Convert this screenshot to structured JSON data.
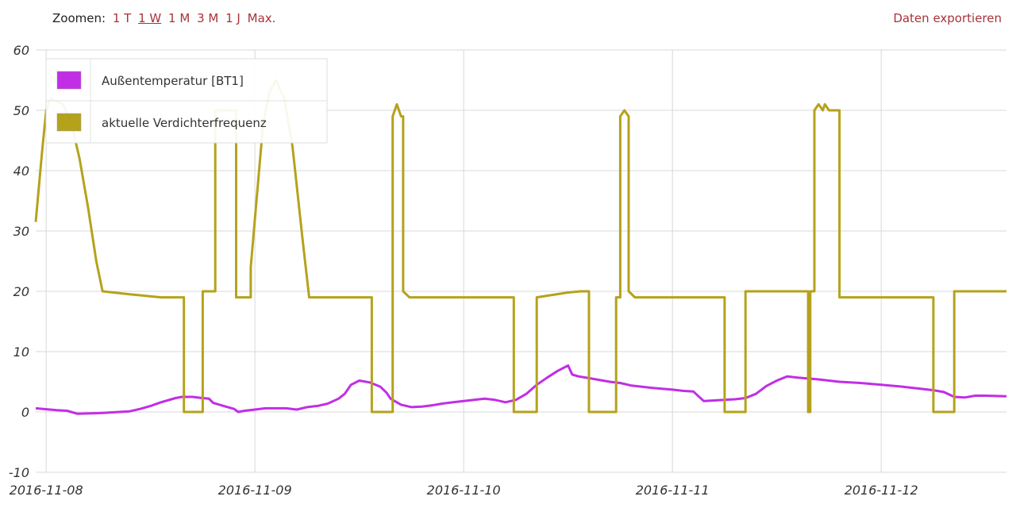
{
  "toolbar": {
    "zoom_label": "Zoomen:",
    "zoom_options": [
      "1 T",
      "1 W",
      "1 M",
      "3 M",
      "1 J",
      "Max."
    ],
    "active_zoom": "1 W",
    "export_label": "Daten exportieren"
  },
  "chart_data": {
    "type": "line",
    "title": "",
    "xlabel": "",
    "ylabel": "",
    "ylim": [
      -10,
      60
    ],
    "yticks": [
      -10,
      0,
      10,
      20,
      30,
      40,
      50,
      60
    ],
    "xticks": [
      "2016-11-08",
      "2016-11-09",
      "2016-11-10",
      "2016-11-11",
      "2016-11-12"
    ],
    "x_unit": "days after 2016-11-08 00:00",
    "xlim": [
      -0.05,
      4.6
    ],
    "grid": true,
    "legend_position": "top-left",
    "series": [
      {
        "name": "Außentemperatur [BT1]",
        "color": "#c12ee6",
        "points": [
          [
            -0.05,
            0.6
          ],
          [
            0.05,
            0.3
          ],
          [
            0.1,
            0.2
          ],
          [
            0.15,
            -0.3
          ],
          [
            0.25,
            -0.2
          ],
          [
            0.35,
            0.0
          ],
          [
            0.4,
            0.1
          ],
          [
            0.45,
            0.5
          ],
          [
            0.5,
            1.0
          ],
          [
            0.55,
            1.6
          ],
          [
            0.6,
            2.1
          ],
          [
            0.62,
            2.3
          ],
          [
            0.65,
            2.5
          ],
          [
            0.7,
            2.5
          ],
          [
            0.75,
            2.3
          ],
          [
            0.78,
            2.2
          ],
          [
            0.8,
            1.5
          ],
          [
            0.85,
            1.0
          ],
          [
            0.9,
            0.5
          ],
          [
            0.92,
            0.0
          ],
          [
            0.95,
            0.2
          ],
          [
            1.0,
            0.4
          ],
          [
            1.05,
            0.6
          ],
          [
            1.1,
            0.6
          ],
          [
            1.15,
            0.6
          ],
          [
            1.2,
            0.4
          ],
          [
            1.25,
            0.8
          ],
          [
            1.3,
            1.0
          ],
          [
            1.35,
            1.4
          ],
          [
            1.4,
            2.2
          ],
          [
            1.43,
            3.0
          ],
          [
            1.46,
            4.5
          ],
          [
            1.5,
            5.2
          ],
          [
            1.55,
            4.9
          ],
          [
            1.6,
            4.2
          ],
          [
            1.63,
            3.2
          ],
          [
            1.65,
            2.2
          ],
          [
            1.7,
            1.2
          ],
          [
            1.75,
            0.8
          ],
          [
            1.8,
            0.9
          ],
          [
            1.85,
            1.1
          ],
          [
            1.9,
            1.4
          ],
          [
            1.95,
            1.6
          ],
          [
            2.0,
            1.8
          ],
          [
            2.1,
            2.2
          ],
          [
            2.15,
            2.0
          ],
          [
            2.2,
            1.6
          ],
          [
            2.25,
            2.0
          ],
          [
            2.3,
            3.0
          ],
          [
            2.35,
            4.5
          ],
          [
            2.4,
            5.7
          ],
          [
            2.45,
            6.8
          ],
          [
            2.5,
            7.7
          ],
          [
            2.52,
            6.2
          ],
          [
            2.55,
            5.9
          ],
          [
            2.6,
            5.6
          ],
          [
            2.7,
            5.0
          ],
          [
            2.75,
            4.8
          ],
          [
            2.8,
            4.4
          ],
          [
            2.9,
            4.0
          ],
          [
            3.0,
            3.7
          ],
          [
            3.05,
            3.5
          ],
          [
            3.1,
            3.4
          ],
          [
            3.15,
            1.8
          ],
          [
            3.25,
            2.0
          ],
          [
            3.3,
            2.1
          ],
          [
            3.35,
            2.3
          ],
          [
            3.4,
            3.0
          ],
          [
            3.45,
            4.3
          ],
          [
            3.5,
            5.2
          ],
          [
            3.55,
            5.9
          ],
          [
            3.6,
            5.7
          ],
          [
            3.7,
            5.4
          ],
          [
            3.8,
            5.0
          ],
          [
            3.9,
            4.8
          ],
          [
            4.0,
            4.5
          ],
          [
            4.1,
            4.2
          ],
          [
            4.2,
            3.8
          ],
          [
            4.25,
            3.6
          ],
          [
            4.3,
            3.3
          ],
          [
            4.35,
            2.5
          ],
          [
            4.4,
            2.4
          ],
          [
            4.45,
            2.7
          ],
          [
            4.5,
            2.7
          ],
          [
            4.6,
            2.6
          ]
        ]
      },
      {
        "name": "aktuelle Verdichterfrequenz",
        "color": "#b5a21c",
        "points": [
          [
            -0.05,
            31.5
          ],
          [
            -0.02,
            43.0
          ],
          [
            0.0,
            50.0
          ],
          [
            0.02,
            52.0
          ],
          [
            0.08,
            51.0
          ],
          [
            0.12,
            48.0
          ],
          [
            0.16,
            42.0
          ],
          [
            0.2,
            34.0
          ],
          [
            0.24,
            25.0
          ],
          [
            0.27,
            20.0
          ],
          [
            0.4,
            19.5
          ],
          [
            0.55,
            19.0
          ],
          [
            0.66,
            19.0
          ],
          [
            0.66,
            0.0
          ],
          [
            0.75,
            0.0
          ],
          [
            0.75,
            20.0
          ],
          [
            0.81,
            20.0
          ],
          [
            0.81,
            50.0
          ],
          [
            0.91,
            50.0
          ],
          [
            0.91,
            19.0
          ],
          [
            0.98,
            19.0
          ],
          [
            0.98,
            24.0
          ],
          [
            1.02,
            40.0
          ],
          [
            1.04,
            48.0
          ],
          [
            1.07,
            53.0
          ],
          [
            1.1,
            55.0
          ],
          [
            1.14,
            52.0
          ],
          [
            1.18,
            44.0
          ],
          [
            1.23,
            28.0
          ],
          [
            1.26,
            19.0
          ],
          [
            1.5,
            19.0
          ],
          [
            1.56,
            19.0
          ],
          [
            1.56,
            0.0
          ],
          [
            1.66,
            0.0
          ],
          [
            1.66,
            49.0
          ],
          [
            1.68,
            51.0
          ],
          [
            1.7,
            49.0
          ],
          [
            1.71,
            49.0
          ],
          [
            1.71,
            20.0
          ],
          [
            1.74,
            19.0
          ],
          [
            2.0,
            19.0
          ],
          [
            2.24,
            19.0
          ],
          [
            2.24,
            0.0
          ],
          [
            2.35,
            0.0
          ],
          [
            2.35,
            19.0
          ],
          [
            2.5,
            19.8
          ],
          [
            2.56,
            20.0
          ],
          [
            2.6,
            20.0
          ],
          [
            2.6,
            0.0
          ],
          [
            2.73,
            0.0
          ],
          [
            2.73,
            19.0
          ],
          [
            2.75,
            19.0
          ],
          [
            2.75,
            49.0
          ],
          [
            2.77,
            50.0
          ],
          [
            2.79,
            49.0
          ],
          [
            2.79,
            20.0
          ],
          [
            2.82,
            19.0
          ],
          [
            3.0,
            19.0
          ],
          [
            3.25,
            19.0
          ],
          [
            3.25,
            0.0
          ],
          [
            3.35,
            0.0
          ],
          [
            3.35,
            20.0
          ],
          [
            3.65,
            20.0
          ],
          [
            3.65,
            0.0
          ],
          [
            3.66,
            0.0
          ],
          [
            3.66,
            20.0
          ],
          [
            3.68,
            20.0
          ],
          [
            3.68,
            50.0
          ],
          [
            3.7,
            51.0
          ],
          [
            3.72,
            50.0
          ],
          [
            3.73,
            51.0
          ],
          [
            3.75,
            50.0
          ],
          [
            3.8,
            50.0
          ],
          [
            3.8,
            19.0
          ],
          [
            4.2,
            19.0
          ],
          [
            4.25,
            19.0
          ],
          [
            4.25,
            0.0
          ],
          [
            4.35,
            0.0
          ],
          [
            4.35,
            20.0
          ],
          [
            4.6,
            20.0
          ]
        ]
      }
    ]
  }
}
